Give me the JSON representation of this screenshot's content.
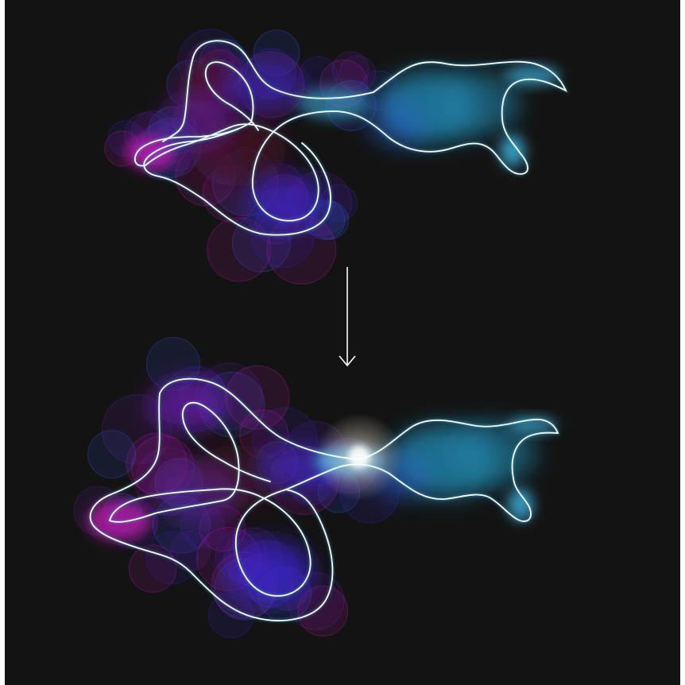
{
  "canvas": {
    "background": "#131313",
    "frame": "#ffffff"
  },
  "colors": {
    "outline": "#ffffff",
    "magenta": "#c21bb0",
    "purple": "#6a1ea8",
    "indigo": "#3a24c8",
    "royal_blue": "#2f5ee8",
    "cyan": "#3fb6e6",
    "teal": "#1f7fa3",
    "maroon": "#4a0c22",
    "spark": "#fff3dc"
  },
  "figures": [
    {
      "name": "knotted-creature-before",
      "state": "before",
      "has_spark": false
    },
    {
      "name": "knotted-creature-after",
      "state": "after",
      "has_spark": true
    }
  ],
  "arrow": {
    "direction": "down",
    "icon": "arrow-down-icon"
  }
}
